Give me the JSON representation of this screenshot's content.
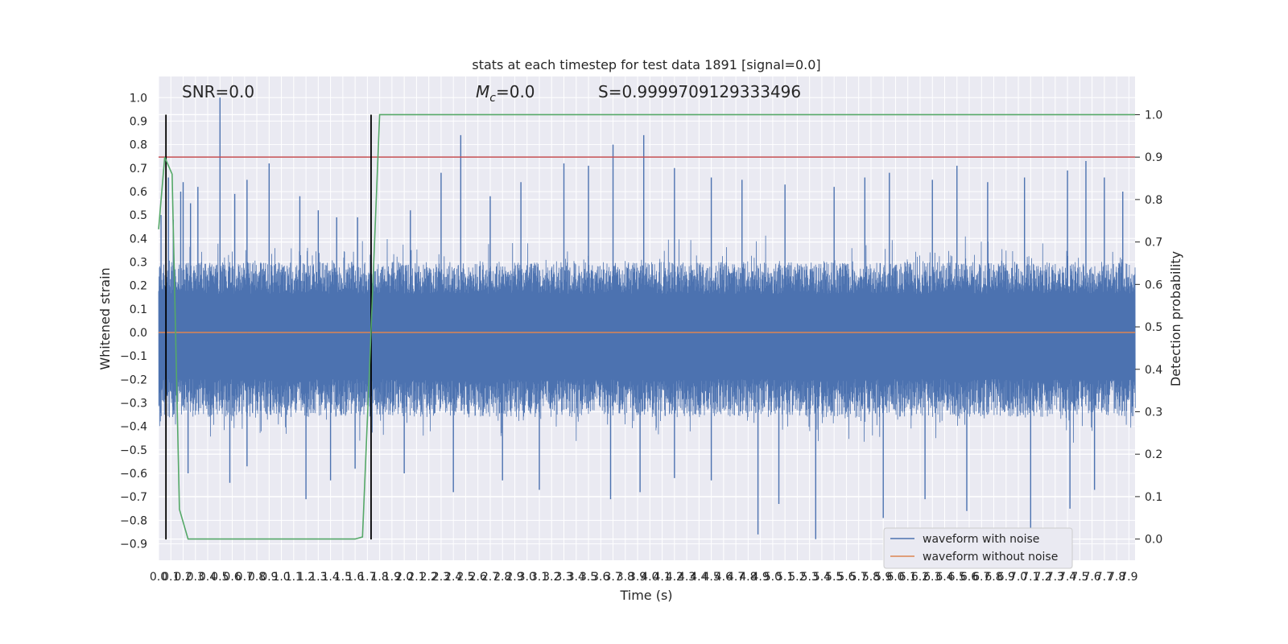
{
  "chart_data": {
    "type": "line",
    "title": "stats at each timestep for test data 1891 [signal=0.0]",
    "xlabel": "Time (s)",
    "ylabel_left": "Whitened strain",
    "ylabel_right": "Detection probability",
    "xlim": [
      0.0,
      7.95
    ],
    "ylim_left": [
      -0.97,
      1.09
    ],
    "ylim_right": [
      -0.05,
      1.09
    ],
    "x_ticks": [
      "0.0",
      "0.1",
      "0.2",
      "0.3",
      "0.4",
      "0.5",
      "0.6",
      "0.7",
      "0.8",
      "0.9",
      "1.0",
      "1.1",
      "1.2",
      "1.3",
      "1.4",
      "1.5",
      "1.6",
      "1.7",
      "1.8",
      "1.9",
      "2.0",
      "2.1",
      "2.2",
      "2.3",
      "2.4",
      "2.5",
      "2.6",
      "2.7",
      "2.8",
      "2.9",
      "3.0",
      "3.1",
      "3.2",
      "3.3",
      "3.4",
      "3.5",
      "3.6",
      "3.7",
      "3.8",
      "3.9",
      "4.0",
      "4.1",
      "4.2",
      "4.3",
      "4.4",
      "4.5",
      "4.6",
      "4.7",
      "4.8",
      "4.9",
      "5.0",
      "5.1",
      "5.2",
      "5.3",
      "5.4",
      "5.5",
      "5.6",
      "5.7",
      "5.8",
      "5.9",
      "6.0",
      "6.1",
      "6.2",
      "6.3",
      "6.4",
      "6.5",
      "6.6",
      "6.7",
      "6.8",
      "6.9",
      "7.0",
      "7.1",
      "7.2",
      "7.3",
      "7.4",
      "7.5",
      "7.6",
      "7.7",
      "7.8",
      "7.9"
    ],
    "y_ticks_left": [
      "−0.9",
      "−0.8",
      "−0.7",
      "−0.6",
      "−0.5",
      "−0.4",
      "−0.3",
      "−0.2",
      "−0.1",
      "0.0",
      "0.1",
      "0.2",
      "0.3",
      "0.4",
      "0.5",
      "0.6",
      "0.7",
      "0.8",
      "0.9",
      "1.0"
    ],
    "y_ticks_right": [
      "0.0",
      "0.1",
      "0.2",
      "0.3",
      "0.4",
      "0.5",
      "0.6",
      "0.7",
      "0.8",
      "0.9",
      "1.0"
    ],
    "annotations": {
      "snr": "SNR=0.0",
      "mc_symbol": "M",
      "mc_sub": "c",
      "mc_value": "=0.0",
      "s": "S=0.9999709129333496"
    },
    "vlines_x": [
      0.06,
      1.73
    ],
    "threshold_right": 0.9,
    "series": [
      {
        "name": "waveform with noise",
        "color": "#4c72b0",
        "axis": "left",
        "band_upper": 0.3,
        "band_lower": -0.36,
        "peaks": [
          [
            0.02,
            0.5
          ],
          [
            0.08,
            0.66
          ],
          [
            0.12,
            0.48
          ],
          [
            0.18,
            0.6
          ],
          [
            0.2,
            0.64
          ],
          [
            0.26,
            0.55
          ],
          [
            0.32,
            0.62
          ],
          [
            0.5,
            1.0
          ],
          [
            0.62,
            0.59
          ],
          [
            0.72,
            0.65
          ],
          [
            0.9,
            0.72
          ],
          [
            1.15,
            0.58
          ],
          [
            1.3,
            0.52
          ],
          [
            1.45,
            0.49
          ],
          [
            1.62,
            0.49
          ],
          [
            2.05,
            0.52
          ],
          [
            2.3,
            0.68
          ],
          [
            2.46,
            0.84
          ],
          [
            2.7,
            0.58
          ],
          [
            2.95,
            0.64
          ],
          [
            3.3,
            0.72
          ],
          [
            3.5,
            0.71
          ],
          [
            3.7,
            0.8
          ],
          [
            3.95,
            0.84
          ],
          [
            4.2,
            0.7
          ],
          [
            4.5,
            0.66
          ],
          [
            4.75,
            0.65
          ],
          [
            5.1,
            0.63
          ],
          [
            5.5,
            0.62
          ],
          [
            5.75,
            0.66
          ],
          [
            5.95,
            0.68
          ],
          [
            6.3,
            0.65
          ],
          [
            6.5,
            0.71
          ],
          [
            6.75,
            0.64
          ],
          [
            7.05,
            0.66
          ],
          [
            7.4,
            0.69
          ],
          [
            7.55,
            0.73
          ],
          [
            7.7,
            0.66
          ],
          [
            7.85,
            0.6
          ]
        ],
        "troughs": [
          [
            0.06,
            -0.42
          ],
          [
            0.24,
            -0.6
          ],
          [
            0.58,
            -0.64
          ],
          [
            0.72,
            -0.57
          ],
          [
            1.2,
            -0.71
          ],
          [
            1.4,
            -0.63
          ],
          [
            1.6,
            -0.58
          ],
          [
            2.0,
            -0.6
          ],
          [
            2.4,
            -0.68
          ],
          [
            2.8,
            -0.63
          ],
          [
            3.1,
            -0.67
          ],
          [
            3.68,
            -0.71
          ],
          [
            3.92,
            -0.68
          ],
          [
            4.2,
            -0.62
          ],
          [
            4.5,
            -0.63
          ],
          [
            4.88,
            -0.86
          ],
          [
            5.05,
            -0.73
          ],
          [
            5.35,
            -0.88
          ],
          [
            5.9,
            -0.79
          ],
          [
            6.24,
            -0.71
          ],
          [
            6.58,
            -0.76
          ],
          [
            7.1,
            -0.84
          ],
          [
            7.42,
            -0.75
          ],
          [
            7.62,
            -0.67
          ]
        ]
      },
      {
        "name": "waveform without noise",
        "color": "#dd8452",
        "axis": "left",
        "x": [
          0.0,
          7.95
        ],
        "y": [
          0.0,
          0.0
        ]
      },
      {
        "name": "detection probability",
        "color": "#55a868",
        "axis": "right",
        "x": [
          0.0,
          0.05,
          0.11,
          0.17,
          0.24,
          0.4,
          1.6,
          1.66,
          1.72,
          1.8,
          7.95
        ],
        "y": [
          0.73,
          0.9,
          0.86,
          0.07,
          0.0,
          0.0,
          0.0,
          0.005,
          0.42,
          1.0,
          1.0
        ]
      }
    ],
    "threshold_line": {
      "color": "#c44e52"
    },
    "legend": {
      "placement": "lower-right",
      "entries": [
        "waveform with noise",
        "waveform without noise"
      ]
    },
    "grid": true,
    "background": "#eaeaf2"
  }
}
